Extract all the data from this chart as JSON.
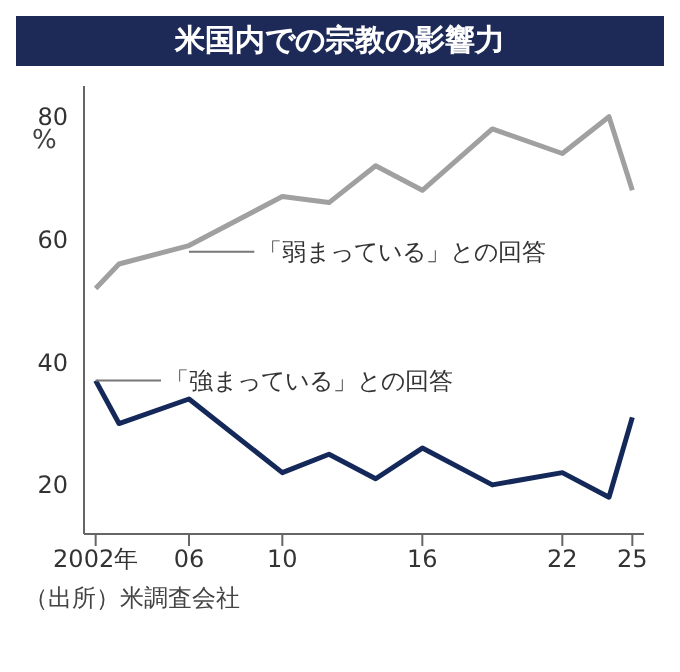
{
  "chart_data": {
    "type": "line",
    "title": "米国内での宗教の影響力",
    "ylabel": "%",
    "x": [
      2002,
      2003,
      2006,
      2010,
      2012,
      2014,
      2016,
      2019,
      2022,
      2024,
      2025
    ],
    "series": [
      {
        "color": "#a0a0a0",
        "values": [
          52,
          56,
          59,
          67,
          66,
          72,
          68,
          78,
          74,
          80,
          68
        ]
      },
      {
        "color": "#15285a",
        "values": [
          37,
          30,
          34,
          22,
          25,
          21,
          26,
          20,
          22,
          18,
          31
        ]
      }
    ],
    "xlim": [
      2001.5,
      2025.5
    ],
    "xticks": [
      {
        "value": 2002,
        "label": "2002年"
      },
      {
        "value": 2006,
        "label": "06"
      },
      {
        "value": 2010,
        "label": "10"
      },
      {
        "value": 2016,
        "label": "16"
      },
      {
        "value": 2022,
        "label": "22"
      },
      {
        "value": 2025,
        "label": "25"
      }
    ],
    "ylim": [
      12,
      85
    ],
    "yticks": [
      20,
      40,
      60,
      80
    ],
    "grid": false,
    "legend": false,
    "marker": "none",
    "line_style": "solid",
    "annotations": [
      {
        "text": "「弱まっている」との回答",
        "x": 2006,
        "y": 58
      },
      {
        "text": "「強まっている」との回答",
        "x": 2002,
        "y": 37
      },
      "（出所）米調査会社"
    ]
  }
}
